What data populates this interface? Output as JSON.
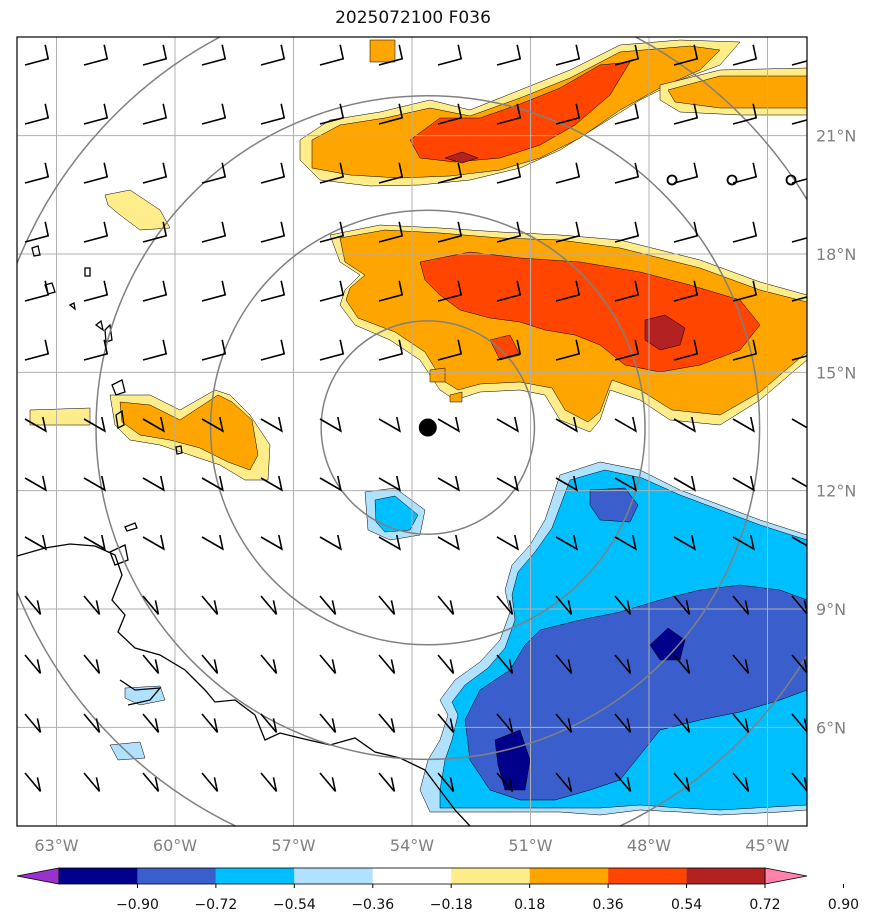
{
  "title": "2025072100 F036",
  "map": {
    "lon_range": [
      -64,
      -44
    ],
    "lat_range": [
      3.5,
      23.5
    ],
    "lon_ticks": [
      "63°W",
      "60°W",
      "57°W",
      "54°W",
      "51°W",
      "48°W",
      "45°W"
    ],
    "lat_ticks": [
      "21°N",
      "18°N",
      "15°N",
      "12°N",
      "9°N",
      "6°N"
    ],
    "center_marker": {
      "lon": -53.6,
      "lat": 13.6
    },
    "range_rings_deg": [
      2.7,
      5.5,
      8.4,
      11.2
    ],
    "grid": true,
    "colors": {
      "gridline": "#b0b0b0",
      "ring": "#808080",
      "coast": "#000000"
    }
  },
  "colorbar": {
    "tick_labels": [
      "−0.90",
      "−0.72",
      "−0.54",
      "−0.36",
      "−0.18",
      "0.18",
      "0.36",
      "0.54",
      "0.72",
      "0.90"
    ],
    "colors": [
      "#9932cc",
      "#00008b",
      "#3a5fcd",
      "#00bfff",
      "#b0e2ff",
      "#ffffff",
      "#ffec8b",
      "#ffa500",
      "#ff4500",
      "#b22222",
      "#ff82ab"
    ],
    "extend": "both"
  }
}
